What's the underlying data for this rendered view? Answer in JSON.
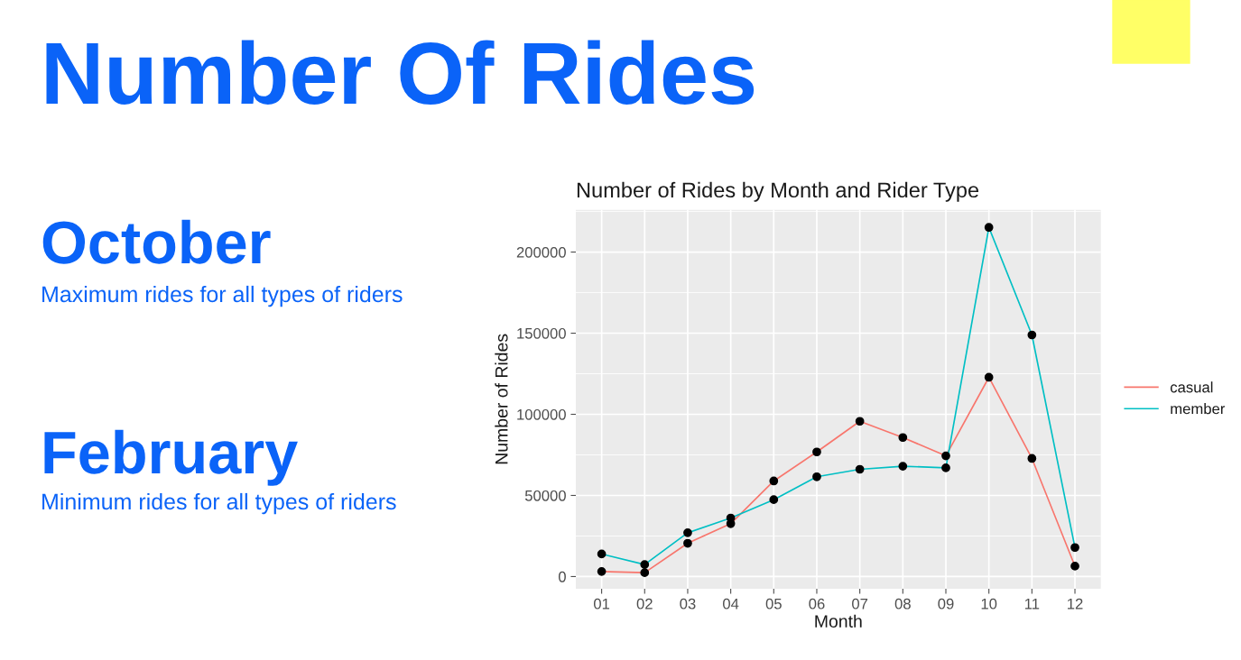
{
  "chart_data": {
    "type": "line",
    "title": "Number of Rides by Month and Rider Type",
    "xlabel": "Month",
    "ylabel": "Number of Rides",
    "categories": [
      "01",
      "02",
      "03",
      "04",
      "05",
      "06",
      "07",
      "08",
      "09",
      "10",
      "11",
      "12"
    ],
    "series": [
      {
        "name": "casual",
        "color": "#f8766d",
        "values": [
          3100,
          2400,
          20500,
          32600,
          58900,
          76800,
          95700,
          85700,
          74400,
          122800,
          72800,
          6400
        ]
      },
      {
        "name": "member",
        "color": "#00bfc4",
        "values": [
          13900,
          7400,
          27000,
          36100,
          47400,
          61500,
          66100,
          68000,
          67000,
          215200,
          148900,
          17900
        ]
      }
    ],
    "ylim": [
      -7500,
      226000
    ],
    "yticks": [
      0,
      50000,
      100000,
      150000,
      200000
    ],
    "grid": true,
    "legend": "right",
    "marker": "circle",
    "line_style": "solid",
    "annotations": [
      "Number Of Rides",
      "October",
      "Maximum rides for all types of riders",
      "February",
      "Minimum rides for all types of riders"
    ]
  }
}
